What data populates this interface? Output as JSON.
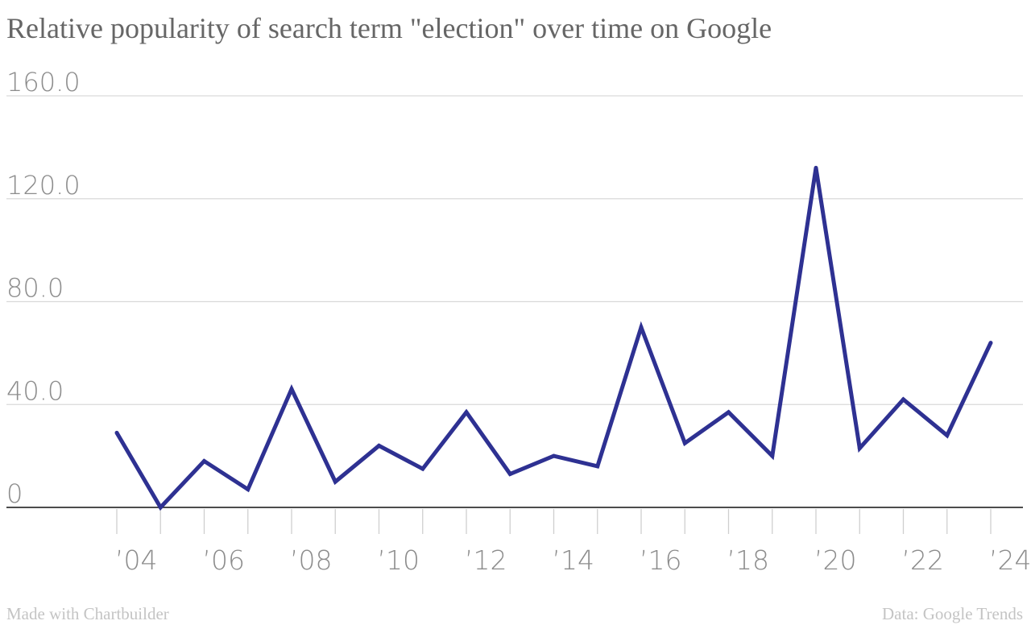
{
  "chart_data": {
    "type": "line",
    "title": "Relative popularity of search term \"election\" over time on Google",
    "xlabel": "",
    "ylabel": "",
    "x": [
      2004,
      2005,
      2006,
      2007,
      2008,
      2009,
      2010,
      2011,
      2012,
      2013,
      2014,
      2015,
      2016,
      2017,
      2018,
      2019,
      2020,
      2021,
      2022,
      2023,
      2024
    ],
    "series": [
      {
        "values": [
          29,
          0,
          18,
          7,
          46,
          10,
          24,
          15,
          37,
          13,
          20,
          16,
          70,
          25,
          37,
          20,
          132,
          23,
          42,
          28,
          64
        ],
        "color": "#2e3192"
      }
    ],
    "ylim": [
      0,
      160
    ],
    "y_ticks": [
      "0",
      "40.0",
      "80.0",
      "120.0",
      "160.0"
    ],
    "y_tick_values": [
      0,
      40,
      80,
      120,
      160
    ],
    "x_ticks": [
      "’04",
      "’06",
      "’08",
      "’10",
      "’12",
      "’14",
      "’16",
      "’18",
      "’20",
      "’22",
      "’24"
    ],
    "x_tick_values": [
      2004,
      2006,
      2008,
      2010,
      2012,
      2014,
      2016,
      2018,
      2020,
      2022,
      2024
    ],
    "grid": true,
    "legend": "none"
  },
  "footer": {
    "credit": "Made with Chartbuilder",
    "source": "Data: Google Trends"
  }
}
